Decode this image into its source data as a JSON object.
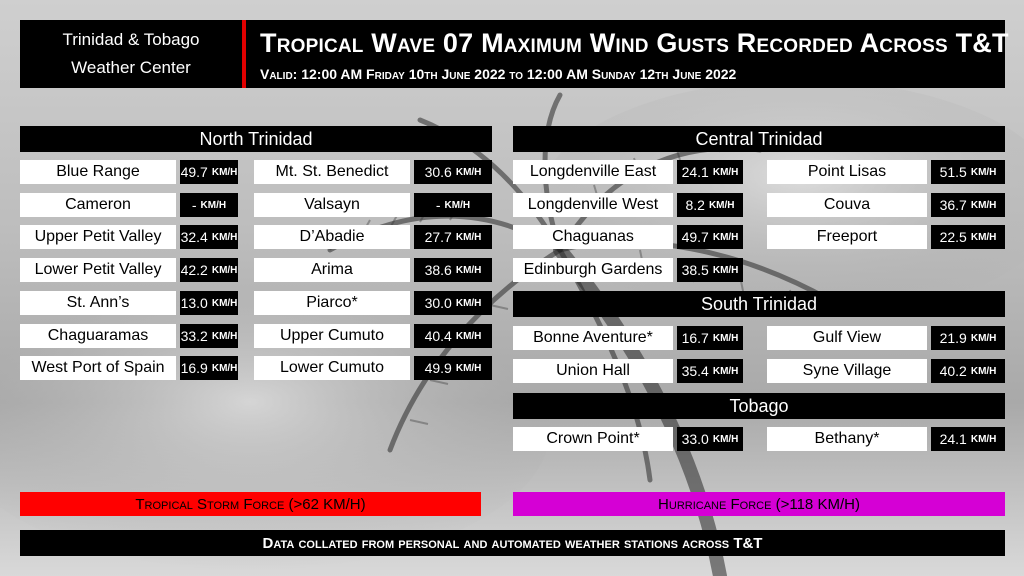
{
  "header": {
    "org_line1": "Trinidad & Tobago",
    "org_line2": "Weather Center",
    "title": "Tropical Wave 07 Maximum Wind Gusts Recorded Across T&T",
    "valid": "Valid: 12:00 AM Friday 10th June 2022 to 12:00 AM Sunday 12th June 2022"
  },
  "unit": "KM/H",
  "regions": {
    "north": {
      "title": "North Trinidad",
      "col1": [
        {
          "name": "Blue Range",
          "value": "49.7"
        },
        {
          "name": "Cameron",
          "value": "-"
        },
        {
          "name": "Upper Petit Valley",
          "value": "32.4"
        },
        {
          "name": "Lower Petit Valley",
          "value": "42.2"
        },
        {
          "name": "St. Ann’s",
          "value": "13.0"
        },
        {
          "name": "Chaguaramas",
          "value": "33.2"
        },
        {
          "name": "West Port of Spain",
          "value": "16.9"
        }
      ],
      "col2": [
        {
          "name": "Mt. St. Benedict",
          "value": "30.6"
        },
        {
          "name": "Valsayn",
          "value": "-"
        },
        {
          "name": "D’Abadie",
          "value": "27.7"
        },
        {
          "name": "Arima",
          "value": "38.6"
        },
        {
          "name": "Piarco*",
          "value": "30.0"
        },
        {
          "name": "Upper Cumuto",
          "value": "40.4"
        },
        {
          "name": "Lower Cumuto",
          "value": "49.9"
        }
      ]
    },
    "central": {
      "title": "Central Trinidad",
      "col1": [
        {
          "name": "Longdenville East",
          "value": "24.1"
        },
        {
          "name": "Longdenville West",
          "value": "8.2"
        },
        {
          "name": "Chaguanas",
          "value": "49.7"
        },
        {
          "name": "Edinburgh Gardens",
          "value": "38.5"
        }
      ],
      "col2": [
        {
          "name": "Point Lisas",
          "value": "51.5"
        },
        {
          "name": "Couva",
          "value": "36.7"
        },
        {
          "name": "Freeport",
          "value": "22.5"
        }
      ]
    },
    "south": {
      "title": "South Trinidad",
      "col1": [
        {
          "name": "Bonne Aventure*",
          "value": "16.7"
        },
        {
          "name": "Union Hall",
          "value": "35.4"
        }
      ],
      "col2": [
        {
          "name": "Gulf View",
          "value": "21.9"
        },
        {
          "name": "Syne Village",
          "value": "40.2"
        }
      ]
    },
    "tobago": {
      "title": "Tobago",
      "col1": [
        {
          "name": "Crown Point*",
          "value": "33.0"
        }
      ],
      "col2": [
        {
          "name": "Bethany*",
          "value": "24.1"
        }
      ]
    }
  },
  "legend": {
    "tropical_storm": "Tropical Storm Force (>62 KM/H)",
    "hurricane": "Hurricane Force (>118 KM/H)"
  },
  "footer": "Data collated from personal and automated weather stations across T&T",
  "colors": {
    "tropical_storm": "#ff0000",
    "hurricane": "#d500d5",
    "accent_divider": "#e10000"
  }
}
